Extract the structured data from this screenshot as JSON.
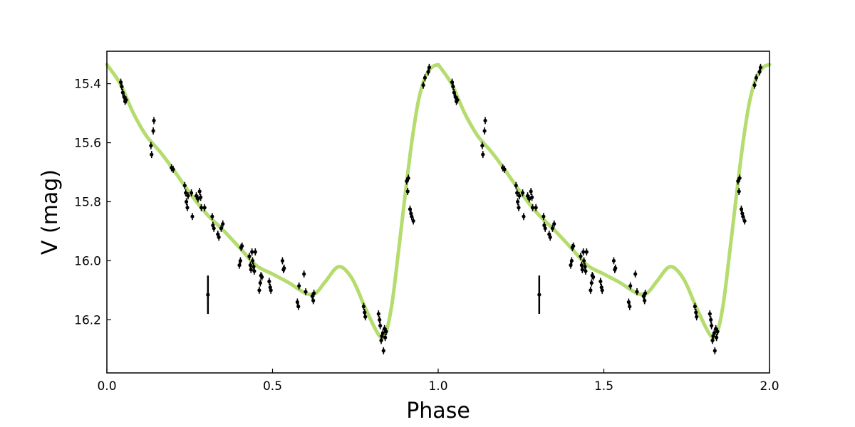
{
  "chart_data": {
    "type": "scatter",
    "title": "",
    "xlabel": "Phase",
    "ylabel": "V (mag)",
    "xlim": [
      0.0,
      2.0
    ],
    "ylim": [
      16.38,
      15.29
    ],
    "y_inverted": true,
    "grid": false,
    "legend": "none",
    "x_ticks": [
      0.0,
      0.5,
      1.0,
      1.5,
      2.0
    ],
    "x_tick_labels": [
      "0.0",
      "0.5",
      "1.0",
      "1.5",
      "2.0"
    ],
    "y_ticks": [
      15.4,
      15.6,
      15.8,
      16.0,
      16.2
    ],
    "y_tick_labels": [
      "15.4",
      "15.6",
      "15.8",
      "16.0",
      "16.2"
    ],
    "colors": {
      "fit": "#b5dc6e",
      "points": "#000000"
    },
    "typical_error": {
      "x": 0.305,
      "y": 16.115,
      "err": 0.065,
      "x_repeat": 1.305
    },
    "fit_curve": {
      "x": [
        0.0,
        0.04,
        0.08,
        0.12,
        0.16,
        0.2,
        0.25,
        0.3,
        0.35,
        0.4,
        0.45,
        0.5,
        0.55,
        0.6,
        0.63,
        0.66,
        0.7,
        0.74,
        0.78,
        0.82,
        0.84,
        0.86,
        0.88,
        0.9,
        0.92,
        0.94,
        0.96,
        0.98,
        1.0
      ],
      "y": [
        15.335,
        15.4,
        15.5,
        15.578,
        15.63,
        15.69,
        15.77,
        15.84,
        15.895,
        15.955,
        16.015,
        16.045,
        16.075,
        16.11,
        16.11,
        16.07,
        16.02,
        16.06,
        16.16,
        16.25,
        16.25,
        16.15,
        15.97,
        15.78,
        15.6,
        15.46,
        15.38,
        15.345,
        15.335
      ]
    },
    "points": [
      {
        "x": 0.042,
        "y": 15.395
      },
      {
        "x": 0.045,
        "y": 15.41
      },
      {
        "x": 0.048,
        "y": 15.43
      },
      {
        "x": 0.052,
        "y": 15.445
      },
      {
        "x": 0.055,
        "y": 15.46
      },
      {
        "x": 0.058,
        "y": 15.455
      },
      {
        "x": 0.133,
        "y": 15.61
      },
      {
        "x": 0.135,
        "y": 15.64
      },
      {
        "x": 0.14,
        "y": 15.56
      },
      {
        "x": 0.142,
        "y": 15.525
      },
      {
        "x": 0.195,
        "y": 15.685
      },
      {
        "x": 0.2,
        "y": 15.69
      },
      {
        "x": 0.235,
        "y": 15.745
      },
      {
        "x": 0.238,
        "y": 15.77
      },
      {
        "x": 0.24,
        "y": 15.8
      },
      {
        "x": 0.243,
        "y": 15.82
      },
      {
        "x": 0.245,
        "y": 15.78
      },
      {
        "x": 0.255,
        "y": 15.77
      },
      {
        "x": 0.258,
        "y": 15.85
      },
      {
        "x": 0.27,
        "y": 15.78
      },
      {
        "x": 0.275,
        "y": 15.79
      },
      {
        "x": 0.28,
        "y": 15.765
      },
      {
        "x": 0.283,
        "y": 15.785
      },
      {
        "x": 0.285,
        "y": 15.82
      },
      {
        "x": 0.295,
        "y": 15.82
      },
      {
        "x": 0.318,
        "y": 15.85
      },
      {
        "x": 0.32,
        "y": 15.88
      },
      {
        "x": 0.323,
        "y": 15.89
      },
      {
        "x": 0.335,
        "y": 15.91
      },
      {
        "x": 0.338,
        "y": 15.92
      },
      {
        "x": 0.345,
        "y": 15.89
      },
      {
        "x": 0.35,
        "y": 15.875
      },
      {
        "x": 0.4,
        "y": 16.015
      },
      {
        "x": 0.403,
        "y": 16.0
      },
      {
        "x": 0.405,
        "y": 15.955
      },
      {
        "x": 0.408,
        "y": 15.95
      },
      {
        "x": 0.43,
        "y": 15.985
      },
      {
        "x": 0.433,
        "y": 16.015
      },
      {
        "x": 0.435,
        "y": 16.03
      },
      {
        "x": 0.438,
        "y": 15.97
      },
      {
        "x": 0.44,
        "y": 16.0
      },
      {
        "x": 0.443,
        "y": 16.02
      },
      {
        "x": 0.445,
        "y": 16.035
      },
      {
        "x": 0.448,
        "y": 15.97
      },
      {
        "x": 0.46,
        "y": 16.1
      },
      {
        "x": 0.463,
        "y": 16.075
      },
      {
        "x": 0.465,
        "y": 16.05
      },
      {
        "x": 0.468,
        "y": 16.055
      },
      {
        "x": 0.49,
        "y": 16.07
      },
      {
        "x": 0.493,
        "y": 16.09
      },
      {
        "x": 0.495,
        "y": 16.1
      },
      {
        "x": 0.53,
        "y": 16.0
      },
      {
        "x": 0.533,
        "y": 16.03
      },
      {
        "x": 0.535,
        "y": 16.025
      },
      {
        "x": 0.575,
        "y": 16.14
      },
      {
        "x": 0.578,
        "y": 16.155
      },
      {
        "x": 0.58,
        "y": 16.085
      },
      {
        "x": 0.595,
        "y": 16.045
      },
      {
        "x": 0.6,
        "y": 16.105
      },
      {
        "x": 0.62,
        "y": 16.12
      },
      {
        "x": 0.623,
        "y": 16.135
      },
      {
        "x": 0.625,
        "y": 16.11
      },
      {
        "x": 0.775,
        "y": 16.155
      },
      {
        "x": 0.778,
        "y": 16.175
      },
      {
        "x": 0.78,
        "y": 16.19
      },
      {
        "x": 0.82,
        "y": 16.18
      },
      {
        "x": 0.823,
        "y": 16.2
      },
      {
        "x": 0.825,
        "y": 16.22
      },
      {
        "x": 0.828,
        "y": 16.27
      },
      {
        "x": 0.83,
        "y": 16.255
      },
      {
        "x": 0.833,
        "y": 16.245
      },
      {
        "x": 0.835,
        "y": 16.305
      },
      {
        "x": 0.838,
        "y": 16.23
      },
      {
        "x": 0.84,
        "y": 16.26
      },
      {
        "x": 0.843,
        "y": 16.24
      },
      {
        "x": 0.905,
        "y": 15.73
      },
      {
        "x": 0.908,
        "y": 15.765
      },
      {
        "x": 0.91,
        "y": 15.72
      },
      {
        "x": 0.915,
        "y": 15.825
      },
      {
        "x": 0.918,
        "y": 15.84
      },
      {
        "x": 0.92,
        "y": 15.85
      },
      {
        "x": 0.925,
        "y": 15.865
      },
      {
        "x": 0.955,
        "y": 15.405
      },
      {
        "x": 0.96,
        "y": 15.38
      },
      {
        "x": 0.97,
        "y": 15.36
      },
      {
        "x": 0.973,
        "y": 15.345
      }
    ]
  }
}
